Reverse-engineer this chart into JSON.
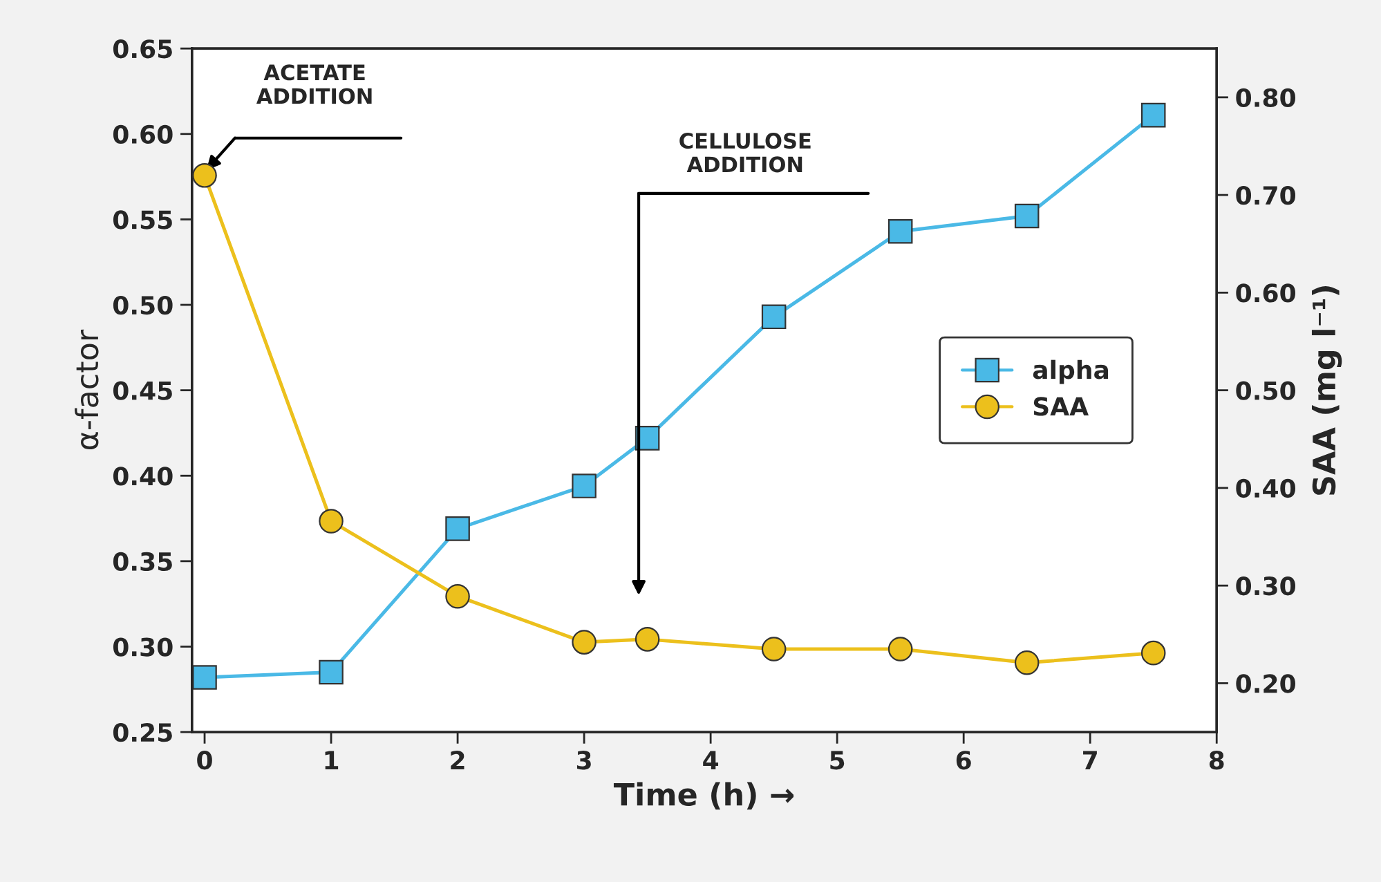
{
  "chart_data": {
    "type": "line",
    "xlabel": "Time (h) →",
    "ylabel": "α-factor",
    "y2label": "SAA (mg l⁻¹)",
    "xlim": [
      -0.1,
      8
    ],
    "xticks": [
      0,
      1,
      2,
      3,
      4,
      5,
      6,
      7,
      8
    ],
    "ylim": [
      0.25,
      0.65
    ],
    "yticks": [
      0.25,
      {
        "value": 0.3,
        "label": "0.30"
      },
      0.35,
      {
        "value": 0.4,
        "label": "0.40"
      },
      0.45,
      {
        "value": 0.5,
        "label": "0.50"
      },
      0.55,
      {
        "value": 0.6,
        "label": "0.60"
      },
      0.65
    ],
    "y2lim": [
      0.15,
      0.85
    ],
    "y2ticks": [
      {
        "value": 0.2,
        "label": "0.20"
      },
      {
        "value": 0.3,
        "label": "0.30"
      },
      {
        "value": 0.4,
        "label": "0.40"
      },
      {
        "value": 0.5,
        "label": "0.50"
      },
      {
        "value": 0.6,
        "label": "0.60"
      },
      {
        "value": 0.7,
        "label": "0.70"
      },
      {
        "value": 0.8,
        "label": "0.80"
      }
    ],
    "grid": false,
    "legend": "center right",
    "line_style": "solid",
    "series": [
      {
        "name": "alpha",
        "color": "#4ab9e6",
        "marker": "square",
        "x": [
          0,
          1,
          2,
          3,
          3.5,
          4.5,
          5.5,
          6.5,
          7.5
        ],
        "values": [
          0.282,
          0.285,
          0.369,
          0.394,
          0.422,
          0.493,
          0.543,
          0.552,
          0.611
        ]
      },
      {
        "name": "SAA",
        "color": "#ecc01c",
        "marker": "circle",
        "axis": "y2",
        "x": [
          0,
          1,
          2,
          3,
          3.5,
          4.5,
          5.5,
          6.5,
          7.5
        ],
        "values": [
          0.72,
          0.366,
          0.289,
          0.242,
          0.245,
          0.235,
          0.235,
          0.221,
          0.231
        ]
      }
    ],
    "annotations": [
      "ACETATE\nADDITION",
      "CELLULOSE\nADDITION"
    ]
  }
}
